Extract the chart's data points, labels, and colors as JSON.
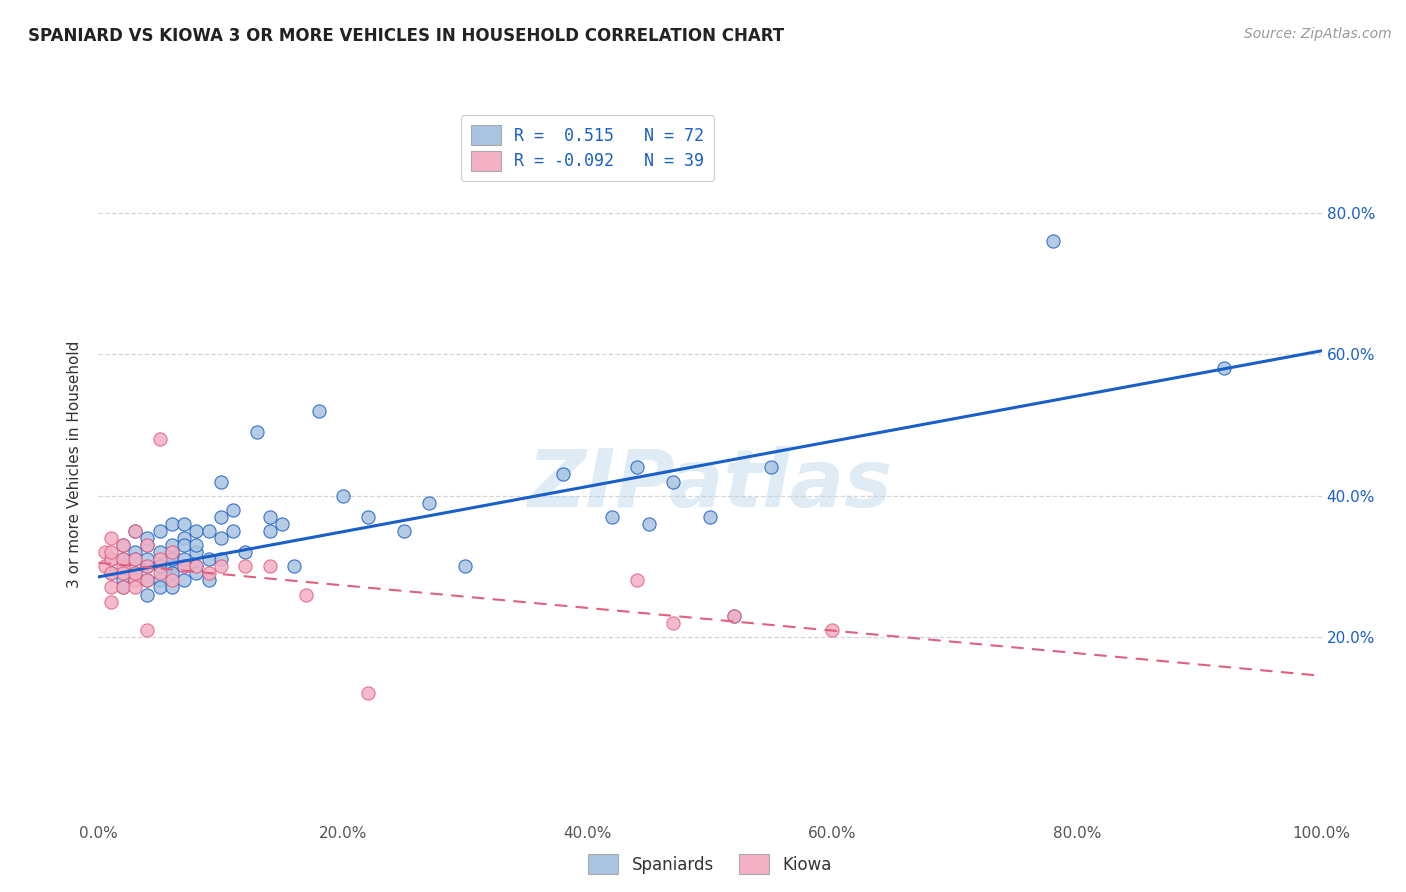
{
  "title": "SPANIARD VS KIOWA 3 OR MORE VEHICLES IN HOUSEHOLD CORRELATION CHART",
  "source": "Source: ZipAtlas.com",
  "ylabel": "3 or more Vehicles in Household",
  "legend_labels": [
    "Spaniards",
    "Kiowa"
  ],
  "blue_R": "0.515",
  "blue_N": "72",
  "pink_R": "-0.092",
  "pink_N": "39",
  "blue_color": "#a8c4e0",
  "blue_line_color": "#1a5fc8",
  "pink_color": "#f4b0c4",
  "pink_line_color": "#e06080",
  "watermark": "ZIPatlas",
  "blue_points_x": [
    0.01,
    0.01,
    0.02,
    0.02,
    0.02,
    0.02,
    0.03,
    0.03,
    0.03,
    0.03,
    0.03,
    0.04,
    0.04,
    0.04,
    0.04,
    0.04,
    0.04,
    0.05,
    0.05,
    0.05,
    0.05,
    0.05,
    0.05,
    0.06,
    0.06,
    0.06,
    0.06,
    0.06,
    0.06,
    0.06,
    0.07,
    0.07,
    0.07,
    0.07,
    0.07,
    0.07,
    0.08,
    0.08,
    0.08,
    0.08,
    0.08,
    0.09,
    0.09,
    0.09,
    0.1,
    0.1,
    0.1,
    0.1,
    0.11,
    0.11,
    0.12,
    0.13,
    0.14,
    0.14,
    0.15,
    0.16,
    0.18,
    0.2,
    0.22,
    0.25,
    0.27,
    0.3,
    0.38,
    0.42,
    0.44,
    0.45,
    0.47,
    0.5,
    0.52,
    0.55,
    0.78,
    0.92
  ],
  "blue_points_y": [
    0.29,
    0.31,
    0.28,
    0.31,
    0.33,
    0.27,
    0.29,
    0.32,
    0.28,
    0.31,
    0.35,
    0.3,
    0.33,
    0.28,
    0.26,
    0.31,
    0.34,
    0.3,
    0.32,
    0.28,
    0.35,
    0.3,
    0.27,
    0.32,
    0.36,
    0.3,
    0.33,
    0.29,
    0.27,
    0.31,
    0.34,
    0.3,
    0.28,
    0.33,
    0.36,
    0.31,
    0.32,
    0.3,
    0.35,
    0.33,
    0.29,
    0.31,
    0.35,
    0.28,
    0.37,
    0.34,
    0.31,
    0.42,
    0.35,
    0.38,
    0.32,
    0.49,
    0.37,
    0.35,
    0.36,
    0.3,
    0.52,
    0.4,
    0.37,
    0.35,
    0.39,
    0.3,
    0.43,
    0.37,
    0.44,
    0.36,
    0.42,
    0.37,
    0.23,
    0.44,
    0.76,
    0.58
  ],
  "pink_points_x": [
    0.005,
    0.005,
    0.01,
    0.01,
    0.01,
    0.01,
    0.01,
    0.01,
    0.02,
    0.02,
    0.02,
    0.02,
    0.02,
    0.03,
    0.03,
    0.03,
    0.03,
    0.03,
    0.04,
    0.04,
    0.04,
    0.04,
    0.05,
    0.05,
    0.05,
    0.06,
    0.06,
    0.07,
    0.08,
    0.09,
    0.1,
    0.12,
    0.14,
    0.17,
    0.22,
    0.44,
    0.47,
    0.52,
    0.6
  ],
  "pink_points_y": [
    0.3,
    0.32,
    0.31,
    0.29,
    0.27,
    0.32,
    0.25,
    0.34,
    0.3,
    0.27,
    0.31,
    0.29,
    0.33,
    0.28,
    0.31,
    0.27,
    0.35,
    0.29,
    0.3,
    0.28,
    0.33,
    0.21,
    0.31,
    0.29,
    0.48,
    0.32,
    0.28,
    0.3,
    0.3,
    0.29,
    0.3,
    0.3,
    0.3,
    0.26,
    0.12,
    0.28,
    0.22,
    0.23,
    0.21
  ],
  "xlim": [
    0.0,
    1.0
  ],
  "ylim": [
    -0.06,
    0.95
  ],
  "ytick_vals": [
    0.2,
    0.4,
    0.6,
    0.8
  ],
  "ytick_labels": [
    "20.0%",
    "40.0%",
    "60.0%",
    "80.0%"
  ],
  "xtick_vals": [
    0.0,
    0.2,
    0.4,
    0.6,
    0.8,
    1.0
  ],
  "xtick_labels": [
    "0.0%",
    "20.0%",
    "40.0%",
    "60.0%",
    "80.0%",
    "100.0%"
  ],
  "blue_trend_x": [
    0.0,
    1.0
  ],
  "blue_trend_y": [
    0.285,
    0.605
  ],
  "pink_trend_x": [
    0.0,
    1.0
  ],
  "pink_trend_y": [
    0.305,
    0.145
  ]
}
